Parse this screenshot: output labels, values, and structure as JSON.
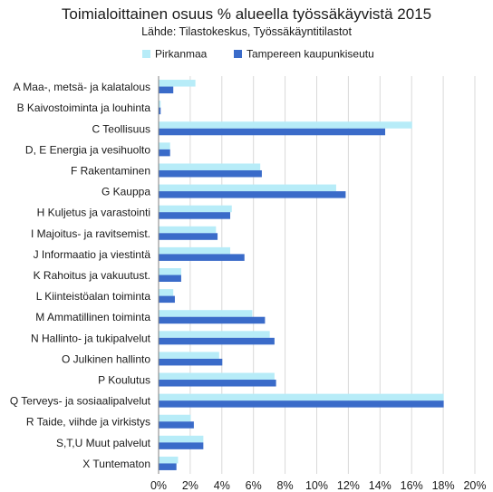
{
  "chart_data": {
    "type": "bar",
    "orientation": "horizontal",
    "title": "Toimialoittainen osuus % alueella työssäkäyvistä 2015",
    "subtitle": "Lähde: Tilastokeskus, Työssäkäyntitilastot",
    "xlabel": "",
    "ylabel": "",
    "xlim": [
      0,
      20
    ],
    "x_ticks": [
      "0%",
      "2%",
      "4%",
      "6%",
      "8%",
      "10%",
      "12%",
      "14%",
      "16%",
      "18%",
      "20%"
    ],
    "grid": true,
    "legend_position": "top-center",
    "categories": [
      "A Maa-, metsä- ja kalatalous",
      "B Kaivostoiminta ja louhinta",
      "C Teollisuus",
      "D, E Energia ja vesihuolto",
      "F Rakentaminen",
      "G Kauppa",
      "H Kuljetus ja varastointi",
      "I Majoitus- ja ravitsemist.",
      "J Informaatio ja viestintä",
      "K Rahoitus ja vakuutust.",
      "L Kiinteistöalan toiminta",
      "M Ammatillinen toiminta",
      "N Hallinto- ja tukipalvelut",
      "O Julkinen hallinto",
      "P Koulutus",
      "Q Terveys- ja sosiaalipalvelut",
      "R Taide, viihde ja virkistys",
      "S,T,U Muut palvelut",
      "X Tuntematon"
    ],
    "series": [
      {
        "name": "Pirkanmaa",
        "color": "#b7ecf8",
        "values": [
          2.3,
          0.1,
          16.0,
          0.7,
          6.4,
          11.2,
          4.6,
          3.6,
          4.5,
          1.4,
          0.9,
          5.9,
          7.0,
          3.8,
          7.3,
          18.0,
          2.0,
          2.8,
          1.2
        ]
      },
      {
        "name": "Tampereen kaupunkiseutu",
        "color": "#3a6bc9",
        "values": [
          0.9,
          0.1,
          14.3,
          0.7,
          6.5,
          11.8,
          4.5,
          3.7,
          5.4,
          1.4,
          1.0,
          6.7,
          7.3,
          4.0,
          7.4,
          18.0,
          2.2,
          2.8,
          1.1
        ]
      }
    ]
  }
}
